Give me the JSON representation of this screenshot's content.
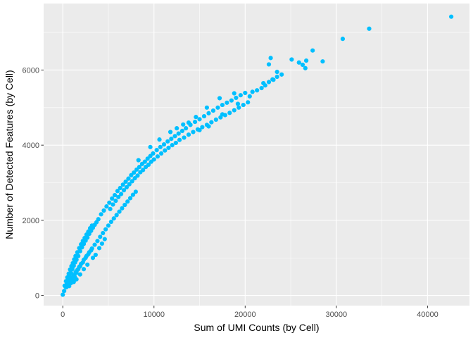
{
  "chart_data": {
    "type": "scatter",
    "title": "",
    "xlabel": "Sum of UMI Counts (by Cell)",
    "ylabel": "Number of Detected Features (by Cell)",
    "xlim": [
      -2100,
      44600
    ],
    "ylim": [
      -270,
      7770
    ],
    "x_ticks": [
      0,
      10000,
      20000,
      30000,
      40000
    ],
    "x_tick_labels": [
      "0",
      "10000",
      "20000",
      "30000",
      "40000"
    ],
    "y_ticks": [
      0,
      2000,
      4000,
      6000
    ],
    "y_tick_labels": [
      "0",
      "2000",
      "4000",
      "6000"
    ],
    "grid": true,
    "legend": "none",
    "colors": {
      "panel": "#EBEBEB",
      "grid": "#FFFFFF",
      "point": "#00BFFF",
      "text": "#4D4D4D"
    },
    "points": [
      [
        0,
        20
      ],
      [
        150,
        120
      ],
      [
        300,
        230
      ],
      [
        450,
        310
      ],
      [
        600,
        420
      ],
      [
        750,
        520
      ],
      [
        900,
        600
      ],
      [
        1050,
        700
      ],
      [
        1200,
        790
      ],
      [
        1350,
        880
      ],
      [
        1500,
        950
      ],
      [
        1700,
        1050
      ],
      [
        1900,
        1180
      ],
      [
        2100,
        1280
      ],
      [
        2300,
        1370
      ],
      [
        2500,
        1460
      ],
      [
        2700,
        1540
      ],
      [
        2900,
        1640
      ],
      [
        3100,
        1720
      ],
      [
        3300,
        1800
      ],
      [
        3500,
        1880
      ],
      [
        3700,
        1950
      ],
      [
        3900,
        2030
      ],
      [
        4200,
        2160
      ],
      [
        4500,
        2260
      ],
      [
        4800,
        2370
      ],
      [
        5100,
        2470
      ],
      [
        5400,
        2580
      ],
      [
        5700,
        2670
      ],
      [
        6000,
        2780
      ],
      [
        6300,
        2860
      ],
      [
        6600,
        2950
      ],
      [
        6900,
        3030
      ],
      [
        7200,
        3110
      ],
      [
        7500,
        3200
      ],
      [
        7800,
        3270
      ],
      [
        8100,
        3350
      ],
      [
        8400,
        3420
      ],
      [
        8700,
        3500
      ],
      [
        9000,
        3560
      ],
      [
        9300,
        3640
      ],
      [
        9600,
        3710
      ],
      [
        9900,
        3780
      ],
      [
        10300,
        3870
      ],
      [
        10700,
        3950
      ],
      [
        11100,
        4020
      ],
      [
        11500,
        4100
      ],
      [
        11900,
        4170
      ],
      [
        12300,
        4240
      ],
      [
        12700,
        4310
      ],
      [
        13100,
        4380
      ],
      [
        13500,
        4450
      ],
      [
        14000,
        4540
      ],
      [
        14500,
        4620
      ],
      [
        15000,
        4690
      ],
      [
        15500,
        4770
      ],
      [
        16000,
        4850
      ],
      [
        16500,
        4920
      ],
      [
        17000,
        5000
      ],
      [
        17500,
        5070
      ],
      [
        18000,
        5130
      ],
      [
        18500,
        5190
      ],
      [
        19000,
        5260
      ],
      [
        19500,
        5330
      ],
      [
        20000,
        5390
      ],
      [
        400,
        220
      ],
      [
        600,
        300
      ],
      [
        800,
        380
      ],
      [
        1000,
        460
      ],
      [
        1200,
        540
      ],
      [
        1400,
        620
      ],
      [
        1600,
        680
      ],
      [
        1800,
        760
      ],
      [
        2000,
        840
      ],
      [
        2300,
        950
      ],
      [
        2600,
        1050
      ],
      [
        2900,
        1150
      ],
      [
        3200,
        1250
      ],
      [
        3500,
        1350
      ],
      [
        3800,
        1450
      ],
      [
        4100,
        1560
      ],
      [
        4400,
        1660
      ],
      [
        4700,
        1760
      ],
      [
        5000,
        1860
      ],
      [
        5300,
        1960
      ],
      [
        5600,
        2050
      ],
      [
        5900,
        2140
      ],
      [
        6200,
        2230
      ],
      [
        6500,
        2320
      ],
      [
        6800,
        2410
      ],
      [
        7100,
        2500
      ],
      [
        7400,
        2590
      ],
      [
        7700,
        2680
      ],
      [
        8000,
        2760
      ],
      [
        200,
        260
      ],
      [
        350,
        380
      ],
      [
        500,
        480
      ],
      [
        650,
        580
      ],
      [
        800,
        690
      ],
      [
        950,
        780
      ],
      [
        1100,
        860
      ],
      [
        1250,
        960
      ],
      [
        1400,
        1050
      ],
      [
        1600,
        1150
      ],
      [
        1800,
        1260
      ],
      [
        2000,
        1360
      ],
      [
        2200,
        1450
      ],
      [
        2400,
        1530
      ],
      [
        2600,
        1620
      ],
      [
        2800,
        1700
      ],
      [
        3000,
        1790
      ],
      [
        3200,
        1860
      ],
      [
        700,
        250
      ],
      [
        900,
        330
      ],
      [
        1100,
        420
      ],
      [
        1300,
        500
      ],
      [
        1500,
        600
      ],
      [
        1700,
        700
      ],
      [
        1900,
        780
      ],
      [
        2200,
        880
      ],
      [
        2500,
        1000
      ],
      [
        2800,
        1100
      ],
      [
        3100,
        1200
      ],
      [
        1200,
        360
      ],
      [
        1500,
        430
      ],
      [
        1900,
        560
      ],
      [
        2300,
        700
      ],
      [
        2700,
        820
      ],
      [
        3300,
        1000
      ],
      [
        3600,
        1080
      ],
      [
        4000,
        1260
      ],
      [
        4300,
        1380
      ],
      [
        4600,
        1500
      ],
      [
        5200,
        2300
      ],
      [
        5500,
        2420
      ],
      [
        5800,
        2520
      ],
      [
        6100,
        2620
      ],
      [
        6400,
        2700
      ],
      [
        6700,
        2800
      ],
      [
        7000,
        2880
      ],
      [
        7300,
        2960
      ],
      [
        7600,
        3040
      ],
      [
        7900,
        3120
      ],
      [
        8200,
        3190
      ],
      [
        8500,
        3280
      ],
      [
        8800,
        3340
      ],
      [
        9100,
        3420
      ],
      [
        9400,
        3480
      ],
      [
        9700,
        3560
      ],
      [
        10000,
        3620
      ],
      [
        10400,
        3700
      ],
      [
        10800,
        3780
      ],
      [
        11200,
        3860
      ],
      [
        11600,
        3930
      ],
      [
        12000,
        4000
      ],
      [
        12400,
        4060
      ],
      [
        12800,
        4140
      ],
      [
        13300,
        4200
      ],
      [
        13800,
        4280
      ],
      [
        14300,
        4350
      ],
      [
        14800,
        4420
      ],
      [
        15300,
        4480
      ],
      [
        15800,
        4540
      ],
      [
        16300,
        4610
      ],
      [
        16800,
        4680
      ],
      [
        17300,
        4740
      ],
      [
        17800,
        4800
      ],
      [
        18300,
        4860
      ],
      [
        18800,
        4930
      ],
      [
        19300,
        5000
      ],
      [
        19800,
        5070
      ],
      [
        20300,
        5140
      ],
      [
        8300,
        3600
      ],
      [
        9600,
        3950
      ],
      [
        10600,
        4150
      ],
      [
        11800,
        4350
      ],
      [
        13200,
        4550
      ],
      [
        14600,
        4750
      ],
      [
        15800,
        5000
      ],
      [
        17200,
        5250
      ],
      [
        18800,
        5380
      ],
      [
        20800,
        5420
      ],
      [
        21300,
        5460
      ],
      [
        21800,
        5520
      ],
      [
        22200,
        5590
      ],
      [
        22600,
        5680
      ],
      [
        23100,
        5740
      ],
      [
        23500,
        5820
      ],
      [
        24000,
        5880
      ],
      [
        23000,
        5750
      ],
      [
        22000,
        5650
      ],
      [
        12500,
        4450
      ],
      [
        13800,
        4600
      ],
      [
        15000,
        4400
      ],
      [
        16000,
        4500
      ],
      [
        17500,
        4820
      ],
      [
        19200,
        5100
      ],
      [
        20500,
        5300
      ],
      [
        22600,
        6150
      ],
      [
        22800,
        6320
      ],
      [
        23500,
        5950
      ],
      [
        25100,
        6280
      ],
      [
        25900,
        6200
      ],
      [
        26300,
        6140
      ],
      [
        26600,
        6050
      ],
      [
        26700,
        6250
      ],
      [
        27400,
        6520
      ],
      [
        28500,
        6230
      ],
      [
        30700,
        6830
      ],
      [
        33600,
        7100
      ],
      [
        42600,
        7420
      ]
    ]
  }
}
